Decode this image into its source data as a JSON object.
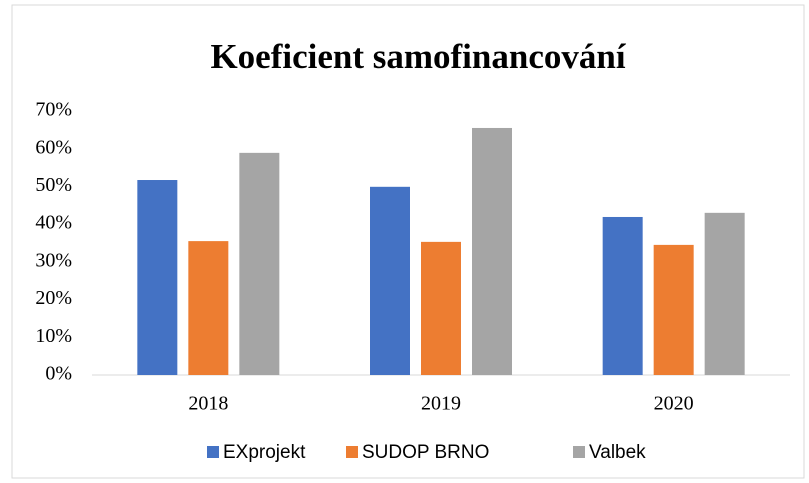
{
  "chart_data": {
    "type": "bar",
    "title": "Koeficient samofinancování",
    "categories": [
      "2018",
      "2019",
      "2020"
    ],
    "series": [
      {
        "name": "EXprojekt",
        "color": "#4472c4",
        "values": [
          51.7,
          49.9,
          41.9
        ]
      },
      {
        "name": "SUDOP BRNO",
        "color": "#ed7d31",
        "values": [
          35.5,
          35.3,
          34.5
        ]
      },
      {
        "name": "Valbek",
        "color": "#a5a5a5",
        "values": [
          58.9,
          65.5,
          43
        ]
      }
    ],
    "ylim": [
      0,
      70
    ],
    "yticks": [
      {
        "value": 0,
        "label": "0%"
      },
      {
        "value": 10,
        "label": "10%"
      },
      {
        "value": 20,
        "label": "20%"
      },
      {
        "value": 30,
        "label": "30%"
      },
      {
        "value": 40,
        "label": "40%"
      },
      {
        "value": 50,
        "label": "50%"
      },
      {
        "value": 60,
        "label": "60%"
      },
      {
        "value": 70,
        "label": "70%"
      }
    ],
    "grid": false,
    "legend": "bottom"
  }
}
